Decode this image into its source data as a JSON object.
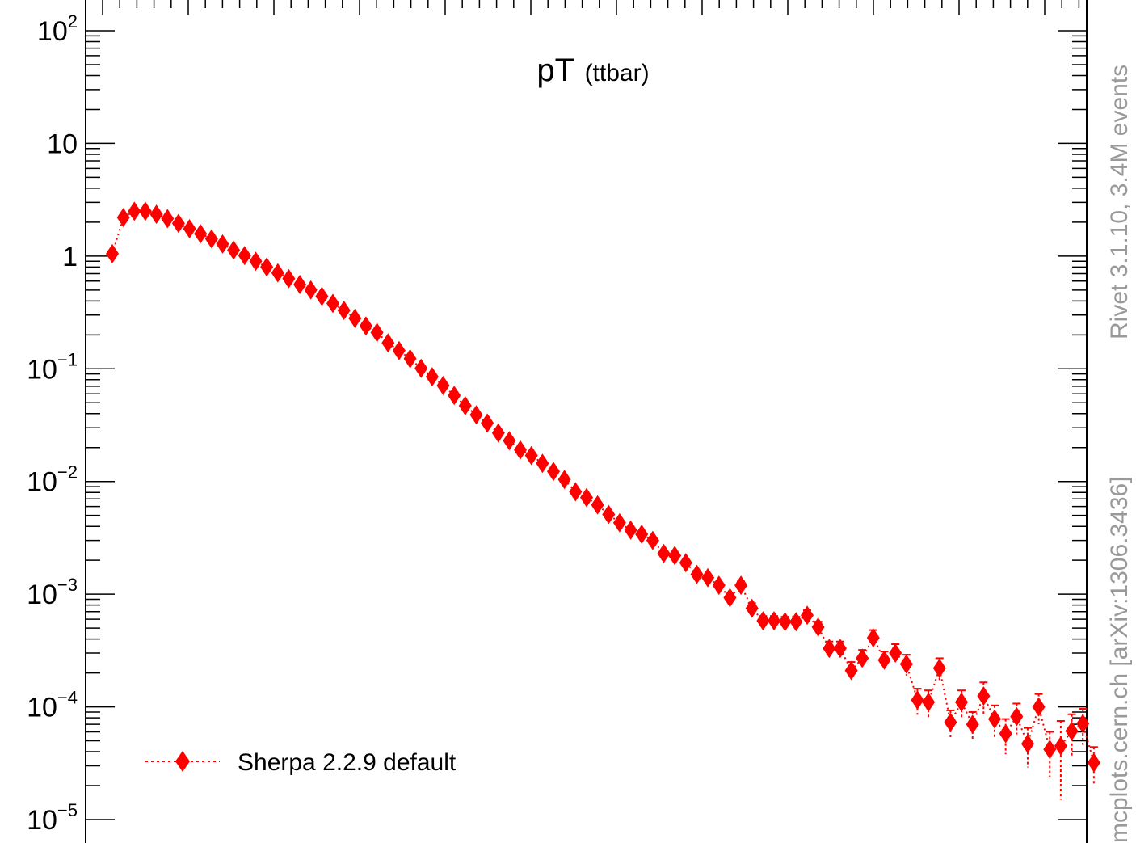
{
  "chart_data": {
    "type": "scatter",
    "title": "pT",
    "subtitle": "(ttbar)",
    "xlabel": "",
    "ylabel": "",
    "y_scale": "log",
    "ylim": [
      1e-05,
      200
    ],
    "grid": false,
    "legend_position": "bottom-left",
    "y_ticks": [
      {
        "base": "10",
        "exp": "2"
      },
      {
        "base": "10",
        "exp": ""
      },
      {
        "base": "1",
        "exp": ""
      },
      {
        "base": "10",
        "exp": "−1"
      },
      {
        "base": "10",
        "exp": "−2"
      },
      {
        "base": "10",
        "exp": "−3"
      },
      {
        "base": "10",
        "exp": "−4"
      },
      {
        "base": "10",
        "exp": "−5"
      }
    ],
    "series": [
      {
        "name": "Sherpa 2.2.9 default",
        "color": "#ff0000",
        "marker": "diamond",
        "line_style": "dotted",
        "x": [
          0,
          1,
          2,
          3,
          4,
          5,
          6,
          7,
          8,
          9,
          10,
          11,
          12,
          13,
          14,
          15,
          16,
          17,
          18,
          19,
          20,
          21,
          22,
          23,
          24,
          25,
          26,
          27,
          28,
          29,
          30,
          31,
          32,
          33,
          34,
          35,
          36,
          37,
          38,
          39,
          40,
          41,
          42,
          43,
          44,
          45,
          46,
          47,
          48,
          49,
          50,
          51,
          52,
          53,
          54,
          55,
          56,
          57,
          58,
          59,
          60,
          61,
          62,
          63,
          64,
          65,
          66,
          67,
          68,
          69,
          70,
          71,
          72,
          73,
          74,
          75,
          76,
          77,
          78,
          79,
          80,
          81,
          82,
          83,
          84,
          85,
          86,
          87,
          88,
          89
        ],
        "y": [
          1.05,
          2.2,
          2.5,
          2.5,
          2.35,
          2.15,
          1.95,
          1.75,
          1.58,
          1.42,
          1.28,
          1.13,
          1.01,
          0.9,
          0.8,
          0.71,
          0.63,
          0.56,
          0.5,
          0.44,
          0.38,
          0.33,
          0.28,
          0.24,
          0.21,
          0.17,
          0.145,
          0.123,
          0.101,
          0.085,
          0.071,
          0.058,
          0.047,
          0.039,
          0.033,
          0.027,
          0.023,
          0.019,
          0.017,
          0.0145,
          0.0123,
          0.0104,
          0.0081,
          0.0072,
          0.0062,
          0.0051,
          0.0043,
          0.0037,
          0.0034,
          0.003,
          0.0023,
          0.0022,
          0.0019,
          0.0015,
          0.0014,
          0.0012,
          0.00093,
          0.0012,
          0.00075,
          0.00058,
          0.00058,
          0.00057,
          0.00057,
          0.00065,
          0.00051,
          0.00033,
          0.00033,
          0.00021,
          0.00027,
          0.00041,
          0.00026,
          0.0003,
          0.00024,
          0.000115,
          0.00011,
          0.00022,
          7.3e-05,
          0.00011,
          7e-05,
          0.000125,
          7.8e-05,
          5.8e-05,
          8.2e-05,
          4.7e-05,
          0.0001,
          4.2e-05,
          4.5e-05,
          6.1e-05,
          7.1e-05,
          3.2e-05
        ],
        "y_err": [
          0,
          0,
          0,
          0,
          0,
          0,
          0,
          0,
          0,
          0,
          0,
          0,
          0,
          0,
          0,
          0,
          0,
          0,
          0,
          0,
          0,
          0,
          0,
          0,
          0,
          0,
          0,
          0,
          0,
          0,
          0,
          0,
          0,
          0,
          0,
          0,
          0,
          0,
          0,
          0,
          0,
          0,
          0,
          0,
          0,
          0,
          0,
          0,
          0,
          0,
          0,
          0,
          0,
          0,
          0,
          6e-05,
          8e-05,
          0.0001,
          8e-05,
          6e-05,
          6e-05,
          6e-05,
          6e-05,
          7e-05,
          6e-05,
          5e-05,
          5e-05,
          4e-05,
          5e-05,
          7e-05,
          5e-05,
          6e-05,
          5e-05,
          3e-05,
          3e-05,
          5e-05,
          2e-05,
          3e-05,
          2e-05,
          4e-05,
          2.5e-05,
          2e-05,
          2.5e-05,
          1.8e-05,
          3e-05,
          1.8e-05,
          3e-05,
          2.5e-05,
          2.5e-05,
          1.2e-05
        ]
      }
    ]
  },
  "side_labels": {
    "rivet_version": "Rivet 3.1.10,  3.4M events",
    "source": "mcplots.cern.ch [arXiv:1306.3436]"
  }
}
